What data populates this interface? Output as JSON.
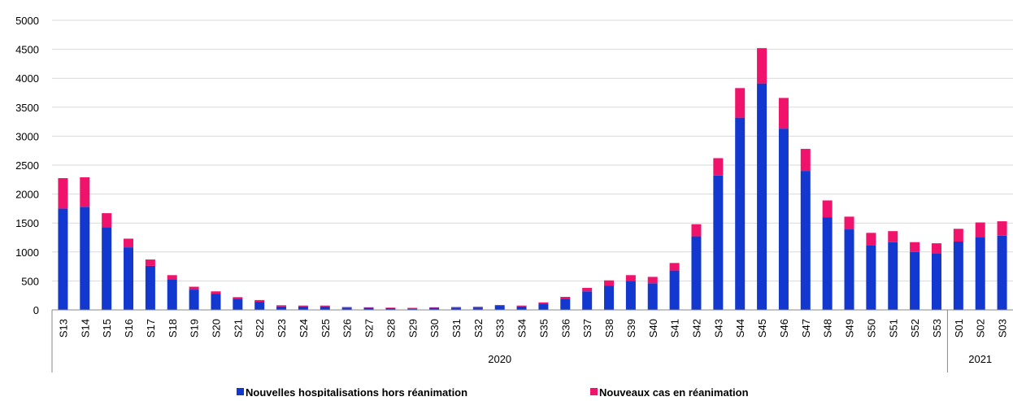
{
  "chart_data": {
    "type": "stacked_bar",
    "categories": [
      "S13",
      "S14",
      "S15",
      "S16",
      "S17",
      "S18",
      "S19",
      "S20",
      "S21",
      "S22",
      "S23",
      "S24",
      "S25",
      "S26",
      "S27",
      "S28",
      "S29",
      "S30",
      "S31",
      "S32",
      "S33",
      "S34",
      "S35",
      "S36",
      "S37",
      "S38",
      "S39",
      "S40",
      "S41",
      "S42",
      "S43",
      "S44",
      "S45",
      "S46",
      "S47",
      "S48",
      "S49",
      "S50",
      "S51",
      "S52",
      "S53",
      "S01",
      "S02",
      "S03"
    ],
    "x_groups": [
      {
        "label": "2020",
        "size": 41
      },
      {
        "label": "2021",
        "size": 3
      }
    ],
    "series": [
      {
        "name": "Nouvelles hospitalisations hors réanimation",
        "color": "#1238d0",
        "values": [
          1750,
          1780,
          1430,
          1080,
          760,
          530,
          350,
          280,
          190,
          140,
          60,
          60,
          60,
          40,
          35,
          30,
          25,
          35,
          40,
          40,
          70,
          60,
          110,
          190,
          320,
          420,
          500,
          460,
          680,
          1270,
          2320,
          3320,
          3910,
          3130,
          2400,
          1600,
          1390,
          1120,
          1170,
          1000,
          980,
          1180,
          1260,
          1280
        ]
      },
      {
        "name": "Nouveaux cas en réanimation",
        "color": "#f0136b",
        "values": [
          525,
          510,
          240,
          150,
          110,
          70,
          50,
          40,
          30,
          30,
          20,
          15,
          15,
          10,
          10,
          10,
          10,
          10,
          10,
          15,
          15,
          15,
          20,
          35,
          60,
          90,
          100,
          110,
          130,
          210,
          300,
          510,
          610,
          530,
          380,
          290,
          220,
          210,
          190,
          170,
          170,
          220,
          250,
          250
        ]
      }
    ],
    "ylim": [
      0,
      5000
    ],
    "yticks": [
      0,
      500,
      1000,
      1500,
      2000,
      2500,
      3000,
      3500,
      4000,
      4500,
      5000
    ],
    "grid": true,
    "legend": "bottom"
  }
}
